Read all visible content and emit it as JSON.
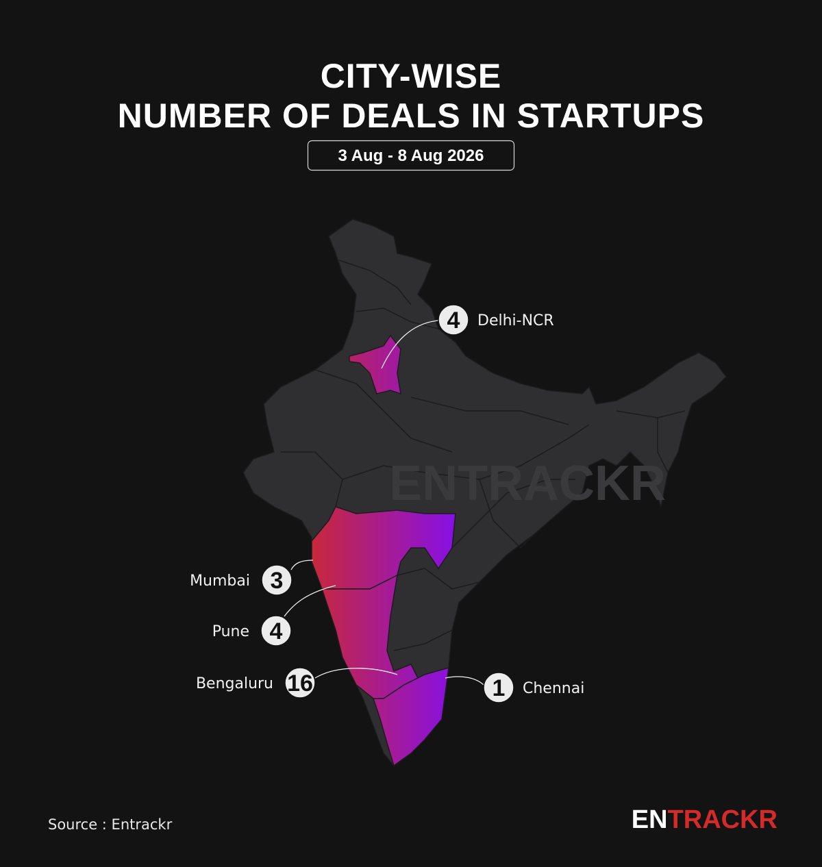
{
  "header": {
    "title_lines": [
      "CITY-WISE",
      "NUMBER OF DEALS IN STARTUPS"
    ],
    "date_range": "3 Aug - 8 Aug 2026"
  },
  "map": {
    "watermark": "ENTRACKR",
    "cities": [
      {
        "name": "Delhi-NCR",
        "deals": 4
      },
      {
        "name": "Mumbai",
        "deals": 3
      },
      {
        "name": "Pune",
        "deals": 4
      },
      {
        "name": "Bengaluru",
        "deals": 16
      },
      {
        "name": "Chennai",
        "deals": 1
      }
    ]
  },
  "footer": {
    "source": "Source : Entrackr",
    "logo": {
      "first": "EN",
      "rest": "TRACKR"
    }
  }
}
